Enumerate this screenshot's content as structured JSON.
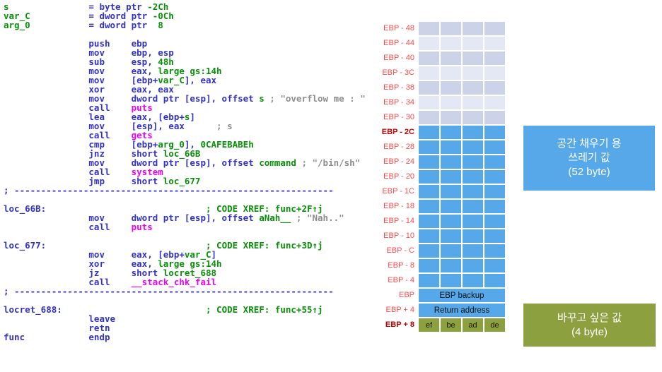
{
  "colors": {
    "asm_navy": "#3232c8",
    "asm_green": "#089108",
    "asm_magenta": "#f000f0",
    "asm_comment_gray": "#8e8e8e",
    "stack_blue": "#56a8e8",
    "stack_gray_dark": "#ccd3e8",
    "stack_gray_light": "#e4e8f4",
    "stack_olive": "#8ca03f",
    "label_red": "#ff4b4b",
    "label_red_bold": "#c00000"
  },
  "disassembly": {
    "lines": [
      {
        "segs": [
          [
            "g",
            "s"
          ],
          [
            "n",
            "               = byte ptr "
          ],
          [
            "g",
            "-2Ch"
          ]
        ]
      },
      {
        "segs": [
          [
            "g",
            "var_C"
          ],
          [
            "n",
            "           = dword ptr "
          ],
          [
            "g",
            "-0Ch"
          ]
        ]
      },
      {
        "segs": [
          [
            "g",
            "arg_0"
          ],
          [
            "n",
            "           = dword ptr  "
          ],
          [
            "g",
            "8"
          ]
        ]
      },
      {
        "segs": []
      },
      {
        "segs": [
          [
            "n",
            "                push    ebp"
          ]
        ]
      },
      {
        "segs": [
          [
            "n",
            "                mov     ebp, esp"
          ]
        ]
      },
      {
        "segs": [
          [
            "n",
            "                sub     esp, "
          ],
          [
            "g",
            "48h"
          ]
        ]
      },
      {
        "segs": [
          [
            "n",
            "                mov     eax, "
          ],
          [
            "g",
            "large gs:14h"
          ]
        ]
      },
      {
        "segs": [
          [
            "n",
            "                mov     [ebp+"
          ],
          [
            "g",
            "var_C"
          ],
          [
            "n",
            "], eax"
          ]
        ]
      },
      {
        "segs": [
          [
            "n",
            "                xor     eax, eax"
          ]
        ]
      },
      {
        "segs": [
          [
            "n",
            "                mov     dword ptr [esp], offset "
          ],
          [
            "g",
            "s"
          ],
          [
            "c",
            " ; \"overflow me : \""
          ]
        ]
      },
      {
        "segs": [
          [
            "n",
            "                call    "
          ],
          [
            "m",
            "puts"
          ]
        ]
      },
      {
        "segs": [
          [
            "n",
            "                lea     eax, [ebp+"
          ],
          [
            "g",
            "s"
          ],
          [
            "n",
            "]"
          ]
        ]
      },
      {
        "segs": [
          [
            "n",
            "                mov     [esp], eax"
          ],
          [
            "c",
            "      ; s"
          ]
        ]
      },
      {
        "segs": [
          [
            "n",
            "                call    "
          ],
          [
            "m",
            "gets"
          ]
        ]
      },
      {
        "segs": [
          [
            "n",
            "                cmp     [ebp+"
          ],
          [
            "g",
            "arg_0"
          ],
          [
            "n",
            "], "
          ],
          [
            "g",
            "0CAFEBABEh"
          ]
        ]
      },
      {
        "segs": [
          [
            "n",
            "                jnz     short "
          ],
          [
            "g",
            "loc_66B"
          ]
        ]
      },
      {
        "segs": [
          [
            "n",
            "                mov     dword ptr [esp], offset "
          ],
          [
            "g",
            "command"
          ],
          [
            "c",
            " ; \"/bin/sh\""
          ]
        ]
      },
      {
        "segs": [
          [
            "n",
            "                call    "
          ],
          [
            "m",
            "system"
          ]
        ]
      },
      {
        "segs": [
          [
            "n",
            "                jmp     short "
          ],
          [
            "g",
            "loc_677"
          ]
        ]
      },
      {
        "segs": [
          [
            "n",
            "; ------------------------------------------------------------"
          ]
        ]
      },
      {
        "segs": []
      },
      {
        "segs": [
          [
            "n",
            "loc_66B:"
          ],
          [
            "g",
            "                              ; CODE XREF: func+2F↑j"
          ]
        ]
      },
      {
        "segs": [
          [
            "n",
            "                mov     dword ptr [esp], offset "
          ],
          [
            "g",
            "aNah__"
          ],
          [
            "c",
            " ; \"Nah..\""
          ]
        ]
      },
      {
        "segs": [
          [
            "n",
            "                call    "
          ],
          [
            "m",
            "puts"
          ]
        ]
      },
      {
        "segs": []
      },
      {
        "segs": [
          [
            "n",
            "loc_677:"
          ],
          [
            "g",
            "                              ; CODE XREF: func+3D↑j"
          ]
        ]
      },
      {
        "segs": [
          [
            "n",
            "                mov     eax, [ebp+"
          ],
          [
            "g",
            "var_C"
          ],
          [
            "n",
            "]"
          ]
        ]
      },
      {
        "segs": [
          [
            "n",
            "                xor     eax, "
          ],
          [
            "g",
            "large gs:14h"
          ]
        ]
      },
      {
        "segs": [
          [
            "n",
            "                jz      short "
          ],
          [
            "g",
            "locret_688"
          ]
        ]
      },
      {
        "segs": [
          [
            "n",
            "                call    "
          ],
          [
            "m",
            "__stack_chk_fail"
          ]
        ]
      },
      {
        "segs": [
          [
            "n",
            "; ------------------------------------------------------------"
          ]
        ]
      },
      {
        "segs": []
      },
      {
        "segs": [
          [
            "n",
            "locret_688:"
          ],
          [
            "g",
            "                           ; CODE XREF: func+55↑j"
          ]
        ]
      },
      {
        "segs": [
          [
            "n",
            "                leave"
          ]
        ]
      },
      {
        "segs": [
          [
            "n",
            "                retn"
          ]
        ]
      },
      {
        "segs": [
          [
            "n",
            "func            endp"
          ]
        ]
      }
    ]
  },
  "stack": {
    "rows": [
      {
        "label": "EBP - 48",
        "type": "g1"
      },
      {
        "label": "EBP - 44",
        "type": "g2"
      },
      {
        "label": "EBP - 40",
        "type": "g1"
      },
      {
        "label": "EBP - 3C",
        "type": "g2"
      },
      {
        "label": "EBP - 38",
        "type": "g1"
      },
      {
        "label": "EBP - 34",
        "type": "g2"
      },
      {
        "label": "EBP - 30",
        "type": "g1"
      },
      {
        "label": "EBP - 2C",
        "type": "blue",
        "bold": true
      },
      {
        "label": "EBP - 28",
        "type": "blue"
      },
      {
        "label": "EBP - 24",
        "type": "blue"
      },
      {
        "label": "EBP - 20",
        "type": "blue"
      },
      {
        "label": "EBP - 1C",
        "type": "blue"
      },
      {
        "label": "EBP - 18",
        "type": "blue"
      },
      {
        "label": "EBP - 14",
        "type": "blue"
      },
      {
        "label": "EBP - 10",
        "type": "blue"
      },
      {
        "label": "EBP - C",
        "type": "blue"
      },
      {
        "label": "EBP - 8",
        "type": "blue"
      },
      {
        "label": "EBP - 4",
        "type": "blue"
      },
      {
        "label": "EBP",
        "type": "merged",
        "text": "EBP backup"
      },
      {
        "label": "EBP + 4",
        "type": "merged",
        "text": "Return address"
      },
      {
        "label": "EBP + 8",
        "type": "olive",
        "bold": true,
        "cells": [
          "ef",
          "be",
          "ad",
          "de"
        ]
      }
    ]
  },
  "annotations": {
    "buffer": {
      "l1": "공간 채우기 용",
      "l2": "쓰레기 값",
      "l3": "(52 byte)"
    },
    "target": {
      "l1": "바꾸고 싶은 값",
      "l2": "(4 byte)"
    }
  }
}
